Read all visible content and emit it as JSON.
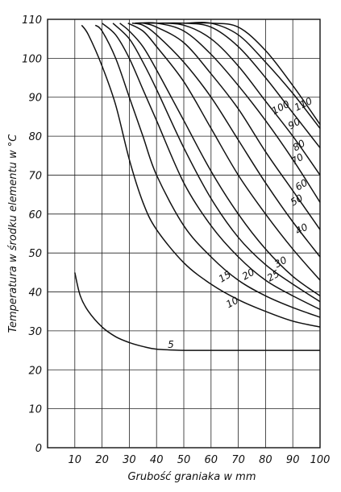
{
  "chart_data": {
    "type": "line",
    "title": "",
    "xlabel": "Grubość graniaka w mm",
    "ylabel": "Temperatura w środku elementu w °C",
    "xlim": [
      0,
      100
    ],
    "ylim": [
      0,
      110
    ],
    "x_ticks": [
      "10",
      "20",
      "30",
      "40",
      "50",
      "60",
      "70",
      "80",
      "90",
      "100"
    ],
    "y_ticks": [
      "0",
      "10",
      "20",
      "30",
      "40",
      "50",
      "60",
      "70",
      "80",
      "90",
      "100",
      "110"
    ],
    "grid": true,
    "legend": "none (curves labelled inline)",
    "series": [
      {
        "name": "5",
        "x": [
          10,
          12,
          15,
          20,
          25,
          30,
          35,
          40,
          50,
          60,
          70,
          80,
          90,
          100
        ],
        "y": [
          45,
          39,
          35,
          31,
          28.5,
          27,
          26,
          25.3,
          25,
          25,
          25,
          25,
          25,
          25
        ]
      },
      {
        "name": "10",
        "x": [
          12.5,
          15,
          20,
          25,
          30,
          35,
          40,
          50,
          60,
          70,
          80,
          90,
          100
        ],
        "y": [
          108.5,
          106,
          98,
          88,
          74,
          63,
          56,
          47.5,
          42,
          38,
          35,
          32.5,
          31
        ]
      },
      {
        "name": "15",
        "x": [
          17.5,
          20,
          25,
          30,
          35,
          40,
          50,
          60,
          70,
          80,
          90,
          100
        ],
        "y": [
          108.5,
          107,
          100,
          90,
          80,
          70,
          57,
          49,
          43,
          39,
          36,
          33.5
        ]
      },
      {
        "name": "20",
        "x": [
          20,
          25,
          30,
          35,
          40,
          50,
          60,
          70,
          80,
          90,
          100
        ],
        "y": [
          109,
          106,
          100,
          92,
          84,
          68,
          57,
          49,
          43,
          39,
          35.5
        ]
      },
      {
        "name": "25",
        "x": [
          24,
          30,
          35,
          40,
          50,
          60,
          70,
          80,
          90,
          100
        ],
        "y": [
          109,
          105,
          99,
          92,
          77,
          64,
          54,
          47,
          42,
          37.5
        ]
      },
      {
        "name": "30",
        "x": [
          26.5,
          30,
          35,
          40,
          50,
          60,
          70,
          80,
          90,
          100
        ],
        "y": [
          109,
          107,
          103,
          97,
          84,
          71,
          60,
          51,
          44,
          39
        ]
      },
      {
        "name": "40",
        "x": [
          29.5,
          35,
          40,
          50,
          60,
          70,
          80,
          90,
          100
        ],
        "y": [
          109,
          107,
          103,
          94,
          82,
          70,
          60,
          51,
          43
        ]
      },
      {
        "name": "50",
        "x": [
          31,
          35,
          40,
          50,
          60,
          70,
          80,
          90,
          100
        ],
        "y": [
          109,
          108.5,
          106,
          99,
          90,
          79,
          68,
          58,
          49
        ]
      },
      {
        "name": "60",
        "x": [
          32,
          35,
          40,
          50,
          60,
          70,
          80,
          90,
          100
        ],
        "y": [
          109,
          109,
          108,
          104,
          96,
          87,
          76,
          66,
          56
        ]
      },
      {
        "name": "70",
        "x": [
          33,
          40,
          50,
          60,
          70,
          80,
          90,
          100
        ],
        "y": [
          109,
          109,
          107,
          101,
          93,
          84,
          74,
          63
        ]
      },
      {
        "name": "80",
        "x": [
          35,
          40,
          50,
          60,
          70,
          80,
          90,
          100
        ],
        "y": [
          109,
          109,
          108.5,
          105,
          98,
          89,
          80,
          70
        ]
      },
      {
        "name": "90",
        "x": [
          37,
          40,
          50,
          60,
          70,
          80,
          90,
          100
        ],
        "y": [
          109,
          109,
          109,
          108,
          103,
          95,
          86,
          77
        ]
      },
      {
        "name": "100",
        "x": [
          40,
          50,
          60,
          70,
          80,
          90,
          100
        ],
        "y": [
          109,
          109,
          109,
          106,
          99,
          91,
          82
        ]
      },
      {
        "name": "110",
        "x": [
          42,
          50,
          60,
          70,
          80,
          90,
          100
        ],
        "y": [
          109,
          109,
          109,
          108,
          102,
          93,
          83
        ]
      }
    ]
  }
}
